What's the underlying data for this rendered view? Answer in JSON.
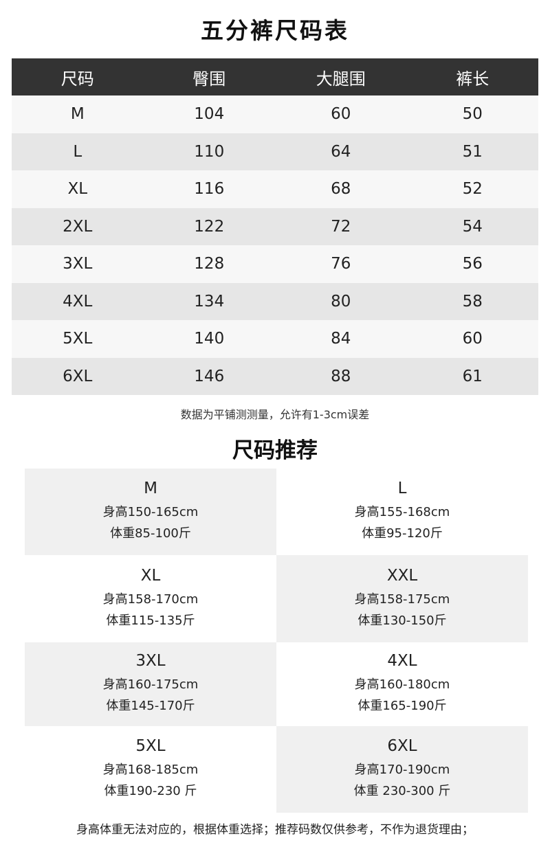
{
  "title": "五分裤尺码表",
  "table": {
    "headers": [
      "尺码",
      "臀围",
      "大腿围",
      "裤长"
    ],
    "rows": [
      [
        "M",
        "104",
        "60",
        "50"
      ],
      [
        "L",
        "110",
        "64",
        "51"
      ],
      [
        "XL",
        "116",
        "68",
        "52"
      ],
      [
        "2XL",
        "122",
        "72",
        "54"
      ],
      [
        "3XL",
        "128",
        "76",
        "56"
      ],
      [
        "4XL",
        "134",
        "80",
        "58"
      ],
      [
        "5XL",
        "140",
        "84",
        "60"
      ],
      [
        "6XL",
        "146",
        "88",
        "61"
      ]
    ]
  },
  "note": "数据为平铺测测量，允许有1-3cm误差",
  "recommend_title": "尺码推荐",
  "recommend": [
    {
      "size": "M",
      "height": "身高150-165cm",
      "weight": "体重85-100斤"
    },
    {
      "size": "L",
      "height": "身高155-168cm",
      "weight": "体重95-120斤"
    },
    {
      "size": "XL",
      "height": "身高158-170cm",
      "weight": "体重115-135斤"
    },
    {
      "size": "XXL",
      "height": "身高158-175cm",
      "weight": "体重130-150斤"
    },
    {
      "size": "3XL",
      "height": "身高160-175cm",
      "weight": "体重145-170斤"
    },
    {
      "size": "4XL",
      "height": "身高160-180cm",
      "weight": "体重165-190斤"
    },
    {
      "size": "5XL",
      "height": "身高168-185cm",
      "weight": "体重190-230 斤"
    },
    {
      "size": "6XL",
      "height": "身高170-190cm",
      "weight": "体重 230-300 斤"
    }
  ],
  "footer": "身高体重无法对应的，根据体重选择；推荐码数仅供参考，不作为退货理由；"
}
